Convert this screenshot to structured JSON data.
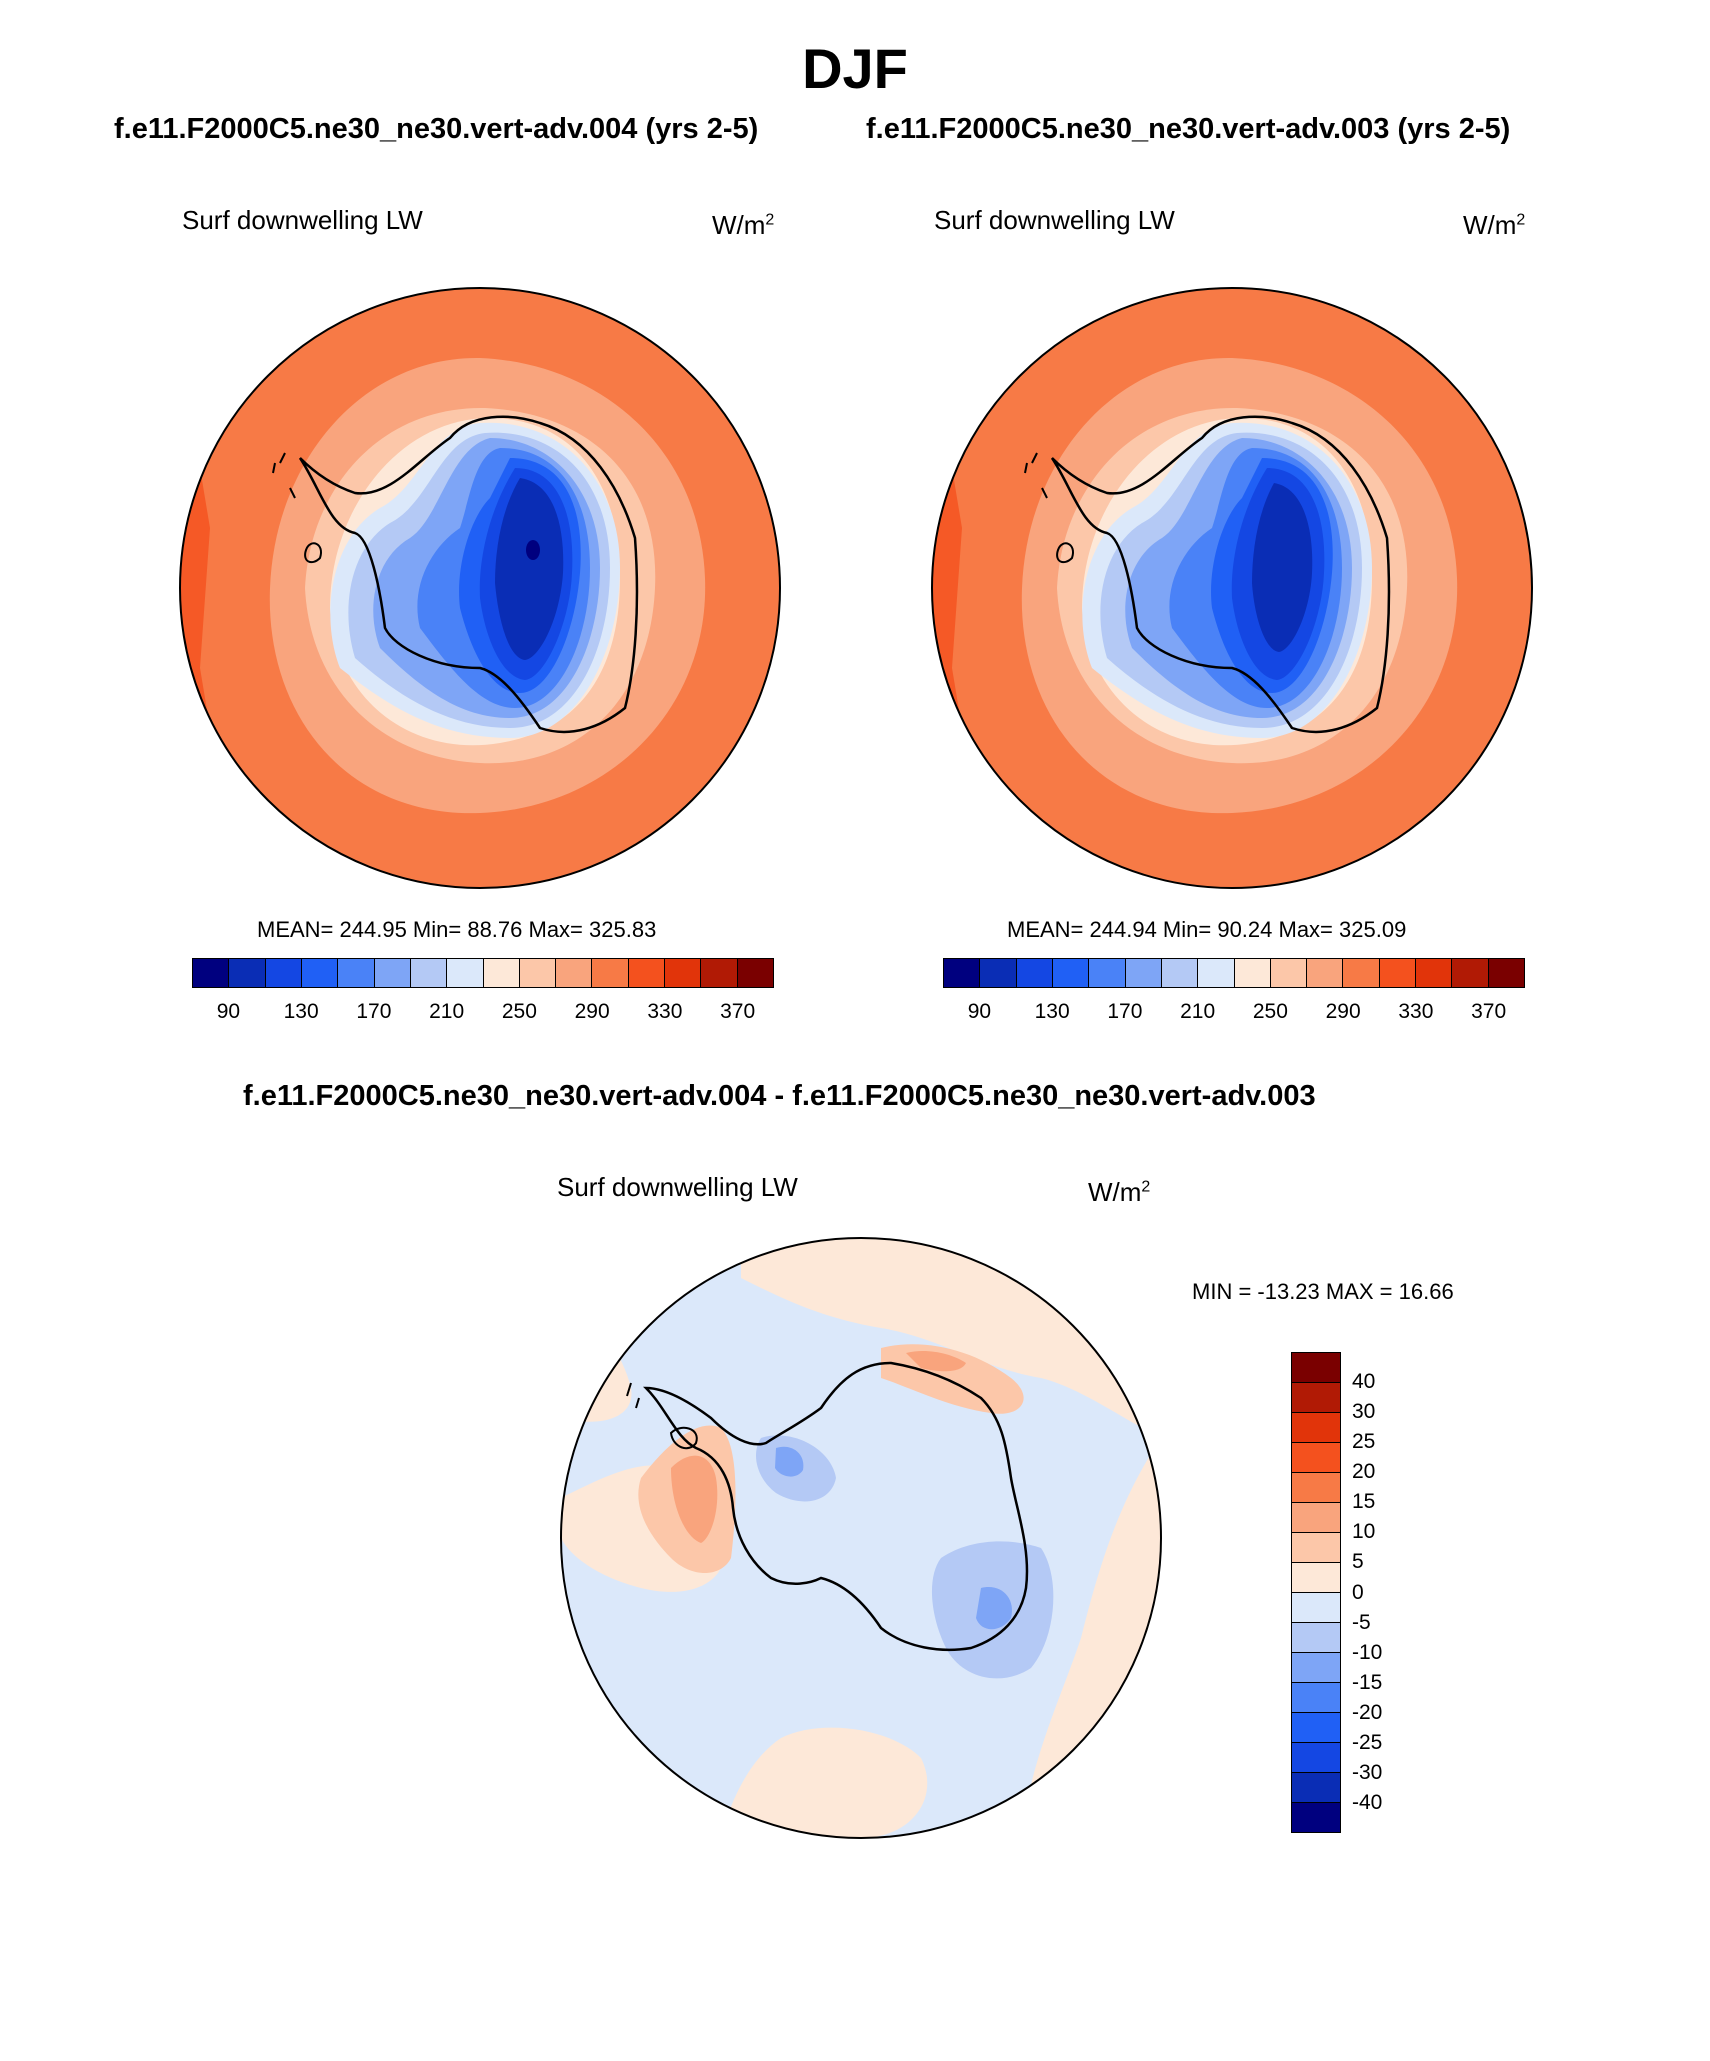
{
  "page": {
    "title": "DJF",
    "subtitle_left": "f.e11.F2000C5.ne30_ne30.vert-adv.004 (yrs 2-5)",
    "subtitle_right": "f.e11.F2000C5.ne30_ne30.vert-adv.003 (yrs 2-5)",
    "diff_title": "f.e11.F2000C5.ne30_ne30.vert-adv.004 - f.e11.F2000C5.ne30_ne30.vert-adv.003"
  },
  "panels": [
    {
      "variable": "Surf downwelling LW",
      "units_base": "W/m",
      "units_exp": "2",
      "stats": "MEAN= 244.95  Min=  88.76  Max= 325.83"
    },
    {
      "variable": "Surf downwelling LW",
      "units_base": "W/m",
      "units_exp": "2",
      "stats": "MEAN= 244.94  Min=  90.24  Max= 325.09"
    },
    {
      "variable": "Surf downwelling LW",
      "units_base": "W/m",
      "units_exp": "2",
      "stats": "MIN = -13.23 MAX =  16.66"
    }
  ],
  "colorbar_abs": {
    "colors": [
      "#00007f",
      "#0a2db5",
      "#1447e3",
      "#2060f5",
      "#4a82f7",
      "#7ea5f6",
      "#b4c9f5",
      "#dbe8fa",
      "#fde8d8",
      "#fcc7a9",
      "#f9a47d",
      "#f77a46",
      "#f4511e",
      "#e1340a",
      "#b11a05",
      "#7a0000"
    ],
    "labels": [
      "90",
      "130",
      "170",
      "210",
      "250",
      "290",
      "330",
      "370"
    ]
  },
  "colorbar_diff": {
    "colors_top_to_bottom": [
      "#7a0000",
      "#b11a05",
      "#e1340a",
      "#f4511e",
      "#f77a46",
      "#f9a47d",
      "#fcc7a9",
      "#fde8d8",
      "#dbe8fa",
      "#b4c9f5",
      "#7ea5f6",
      "#4a82f7",
      "#2060f5",
      "#1447e3",
      "#0a2db5",
      "#00007f"
    ],
    "labels_top_to_bottom": [
      "40",
      "30",
      "25",
      "20",
      "15",
      "10",
      "5",
      "0",
      "-5",
      "-10",
      "-15",
      "-20",
      "-25",
      "-30",
      "-40"
    ]
  }
}
